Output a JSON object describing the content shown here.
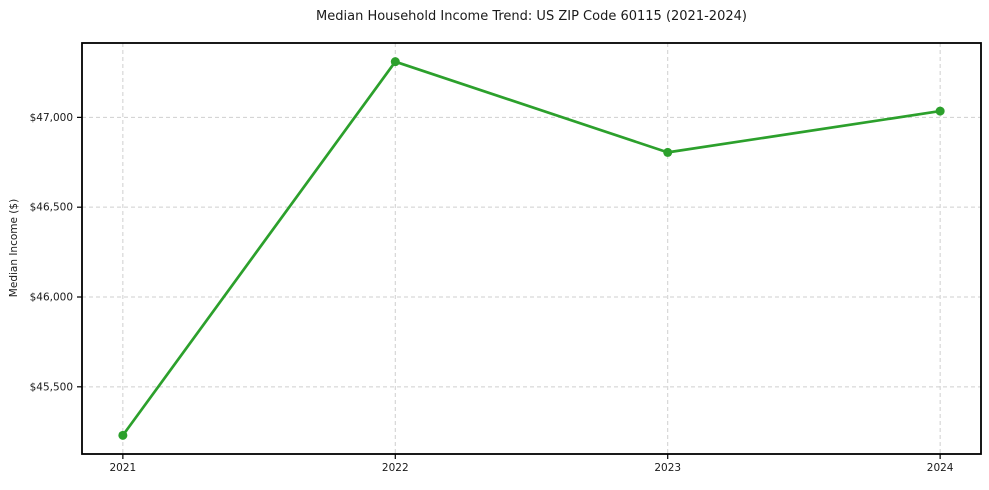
{
  "chart_data": {
    "type": "line",
    "title": "Median Household Income Trend: US ZIP Code 60115 (2021-2024)",
    "xlabel": "",
    "ylabel": "Median Income ($)",
    "categories": [
      2021,
      2022,
      2023,
      2024
    ],
    "x_tick_labels": [
      "2021",
      "2022",
      "2023",
      "2024"
    ],
    "series": [
      {
        "name": "Median Household Income",
        "values": [
          45230,
          47310,
          46805,
          47035
        ]
      }
    ],
    "y_ticks": [
      45500,
      46000,
      46500,
      47000
    ],
    "y_tick_labels": [
      "$45,500",
      "$46,000",
      "$46,500",
      "$47,000"
    ],
    "ylim": [
      45126,
      47414
    ],
    "xlim_pad_years": 0.15,
    "grid": true,
    "grid_style": "dashed",
    "legend": "none",
    "colors": {
      "line": "#2ca02c",
      "marker": "#2ca02c",
      "grid": "#cfcfcf",
      "spine": "#000000",
      "text": "#1a1a1a",
      "background": "#ffffff"
    }
  }
}
